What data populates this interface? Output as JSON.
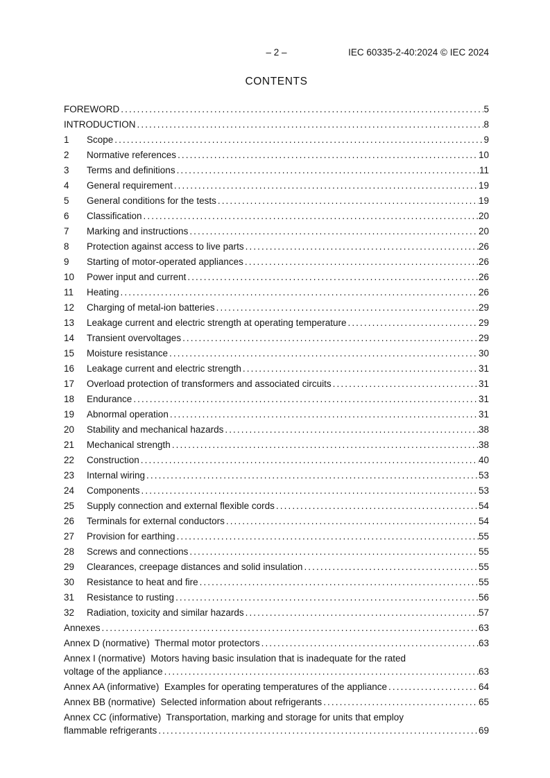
{
  "header": {
    "page_label": "– 2 –",
    "document_reference": "IEC 60335-2-40:2024 © IEC 2024"
  },
  "contents": {
    "heading": "CONTENTS",
    "entries": [
      {
        "num": "",
        "text": "FOREWORD",
        "page": "5"
      },
      {
        "num": "",
        "text": "INTRODUCTION",
        "page": "8"
      },
      {
        "num": "1",
        "text": "Scope",
        "page": "9"
      },
      {
        "num": "2",
        "text": "Normative references",
        "page": "10"
      },
      {
        "num": "3",
        "text": "Terms and definitions",
        "page": "11"
      },
      {
        "num": "4",
        "text": "General requirement",
        "page": "19"
      },
      {
        "num": "5",
        "text": "General conditions for the tests",
        "page": "19"
      },
      {
        "num": "6",
        "text": "Classification",
        "page": "20"
      },
      {
        "num": "7",
        "text": "Marking and instructions",
        "page": "20"
      },
      {
        "num": "8",
        "text": "Protection against access to live parts",
        "page": "26"
      },
      {
        "num": "9",
        "text": "Starting of motor-operated appliances",
        "page": "26"
      },
      {
        "num": "10",
        "text": "Power input and current",
        "page": "26"
      },
      {
        "num": "11",
        "text": "Heating",
        "page": "26"
      },
      {
        "num": "12",
        "text": "Charging of metal-ion batteries",
        "page": "29"
      },
      {
        "num": "13",
        "text": "Leakage current and electric strength at operating temperature",
        "page": "29"
      },
      {
        "num": "14",
        "text": "Transient overvoltages",
        "page": "29"
      },
      {
        "num": "15",
        "text": "Moisture resistance",
        "page": "30"
      },
      {
        "num": "16",
        "text": "Leakage current and electric strength",
        "page": "31"
      },
      {
        "num": "17",
        "text": "Overload protection of transformers and associated circuits",
        "page": "31"
      },
      {
        "num": "18",
        "text": "Endurance",
        "page": "31"
      },
      {
        "num": "19",
        "text": "Abnormal operation",
        "page": "31"
      },
      {
        "num": "20",
        "text": "Stability and mechanical hazards",
        "page": "38"
      },
      {
        "num": "21",
        "text": "Mechanical strength",
        "page": "38"
      },
      {
        "num": "22",
        "text": "Construction",
        "page": "40"
      },
      {
        "num": "23",
        "text": "Internal wiring",
        "page": "53"
      },
      {
        "num": "24",
        "text": "Components",
        "page": "53"
      },
      {
        "num": "25",
        "text": "Supply connection and external flexible cords",
        "page": "54"
      },
      {
        "num": "26",
        "text": "Terminals for external conductors",
        "page": "54"
      },
      {
        "num": "27",
        "text": "Provision for earthing",
        "page": "55"
      },
      {
        "num": "28",
        "text": "Screws and connections",
        "page": "55"
      },
      {
        "num": "29",
        "text": "Clearances, creepage distances and solid insulation",
        "page": "55"
      },
      {
        "num": "30",
        "text": "Resistance to heat and fire",
        "page": "55"
      },
      {
        "num": "31",
        "text": "Resistance to rusting",
        "page": "56"
      },
      {
        "num": "32",
        "text": "Radiation, toxicity and similar hazards",
        "page": "57"
      },
      {
        "num": "",
        "text": "Annexes",
        "page": "63"
      },
      {
        "num": "",
        "text": "Annex D (normative)  Thermal motor protectors",
        "page": "63"
      },
      {
        "num": "",
        "text": "Annex I (normative)  Motors having basic insulation that is inadequate for the rated",
        "page": ""
      },
      {
        "num": "",
        "text": "voltage of the appliance",
        "page": "63"
      },
      {
        "num": "",
        "text": "Annex AA (informative)  Examples for operating temperatures of the appliance",
        "page": "64"
      },
      {
        "num": "",
        "text": "Annex BB (normative)  Selected information about refrigerants",
        "page": "65"
      },
      {
        "num": "",
        "text": "Annex CC (informative)  Transportation, marking and storage for units that employ",
        "page": ""
      },
      {
        "num": "",
        "text": "flammable refrigerants",
        "page": "69"
      }
    ]
  }
}
